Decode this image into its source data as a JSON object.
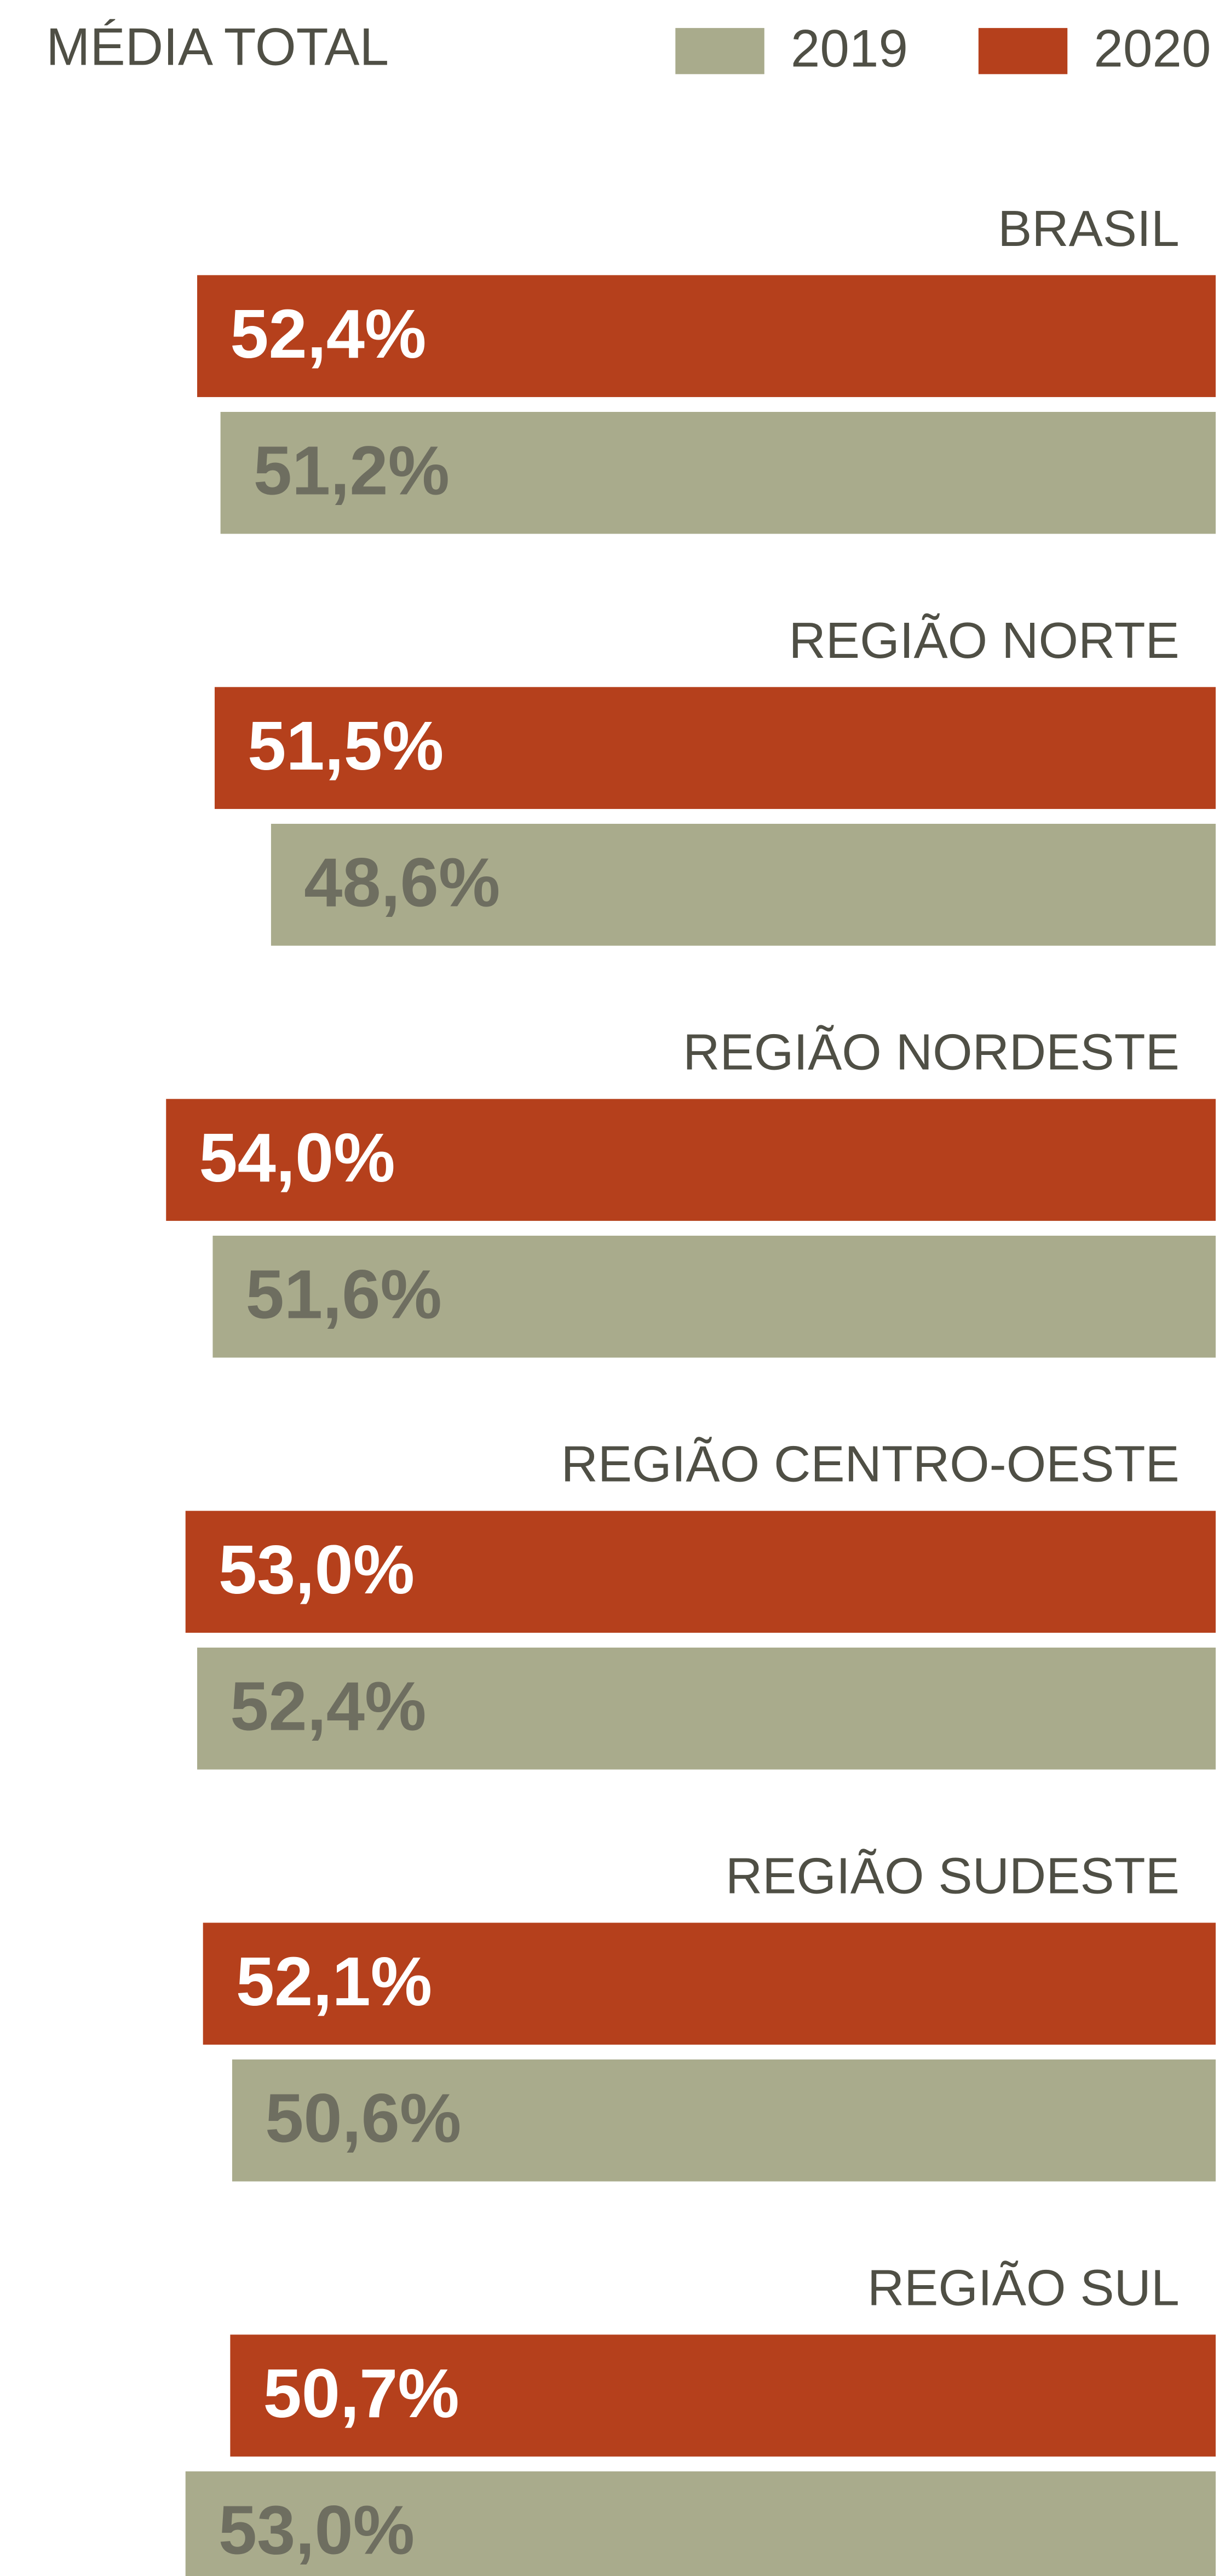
{
  "chart_data": {
    "type": "barh",
    "title": "MÉDIA TOTAL",
    "categories": [
      "BRASIL",
      "REGIÃO NORTE",
      "REGIÃO NORDESTE",
      "REGIÃO CENTRO-OESTE",
      "REGIÃO SUDESTE",
      "REGIÃO SUL"
    ],
    "series": [
      {
        "name": "2020",
        "color": "#b5401c",
        "values": [
          52.4,
          51.5,
          54.0,
          53.0,
          52.1,
          50.7
        ],
        "value_labels": [
          "52,4%",
          "51,5%",
          "54,0%",
          "53,0%",
          "52,1%",
          "50,7%"
        ]
      },
      {
        "name": "2019",
        "color": "#a9ab8c",
        "values": [
          51.2,
          48.6,
          51.6,
          52.4,
          50.6,
          53.0
        ],
        "value_labels": [
          "51,2%",
          "48,6%",
          "51,6%",
          "52,4%",
          "50,6%",
          "53,0%"
        ]
      }
    ]
  }
}
